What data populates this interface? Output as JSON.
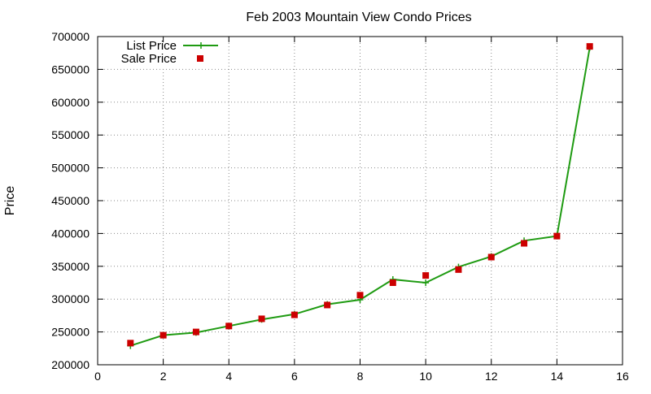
{
  "chart_data": {
    "type": "line",
    "title": "Feb 2003 Mountain View Condo Prices",
    "xlabel": "",
    "ylabel": "Price",
    "xlim": [
      0,
      16
    ],
    "ylim": [
      200000,
      700000
    ],
    "x_ticks": [
      0,
      2,
      4,
      6,
      8,
      10,
      12,
      14,
      16
    ],
    "y_ticks": [
      200000,
      250000,
      300000,
      350000,
      400000,
      450000,
      500000,
      550000,
      600000,
      650000,
      700000
    ],
    "grid": true,
    "legend_position": "top-left",
    "series": [
      {
        "name": "List Price",
        "style": "line-with-plus-markers",
        "color": "#1f9b12",
        "x": [
          1,
          2,
          3,
          4,
          5,
          6,
          7,
          8,
          9,
          10,
          11,
          12,
          13,
          14,
          15
        ],
        "values": [
          229000,
          245000,
          249000,
          259000,
          269000,
          277000,
          292000,
          299000,
          330000,
          325000,
          349000,
          365000,
          389000,
          396000,
          683000
        ]
      },
      {
        "name": "Sale Price",
        "style": "square-markers",
        "color": "#cc0000",
        "x": [
          1,
          2,
          3,
          4,
          5,
          6,
          7,
          8,
          9,
          10,
          11,
          12,
          13,
          14,
          15
        ],
        "values": [
          233000,
          245000,
          250000,
          259000,
          270000,
          276000,
          291000,
          306000,
          325000,
          336000,
          345000,
          364000,
          385000,
          396000,
          685000
        ]
      }
    ]
  }
}
